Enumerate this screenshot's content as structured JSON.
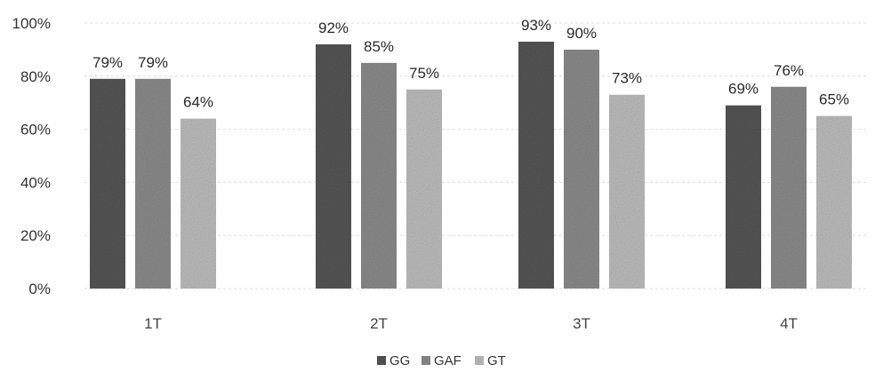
{
  "chart_data": {
    "type": "bar",
    "title": "",
    "xlabel": "",
    "ylabel": "",
    "ylim": [
      0,
      100
    ],
    "yticks": [
      "0%",
      "20%",
      "40%",
      "60%",
      "80%",
      "100%"
    ],
    "categories": [
      "1T",
      "2T",
      "3T",
      "4T"
    ],
    "series": [
      {
        "name": "GG",
        "values": [
          79,
          92,
          93,
          69
        ],
        "labels": [
          "79%",
          "92%",
          "93%",
          "69%"
        ],
        "color": "#555555"
      },
      {
        "name": "GAF",
        "values": [
          79,
          85,
          90,
          76
        ],
        "labels": [
          "79%",
          "85%",
          "90%",
          "76%"
        ],
        "color": "#8a8a8a"
      },
      {
        "name": "GT",
        "values": [
          64,
          75,
          73,
          65
        ],
        "labels": [
          "64%",
          "75%",
          "73%",
          "65%"
        ],
        "color": "#bcbcbc"
      }
    ],
    "grid": true,
    "legend": "bottom-center"
  }
}
